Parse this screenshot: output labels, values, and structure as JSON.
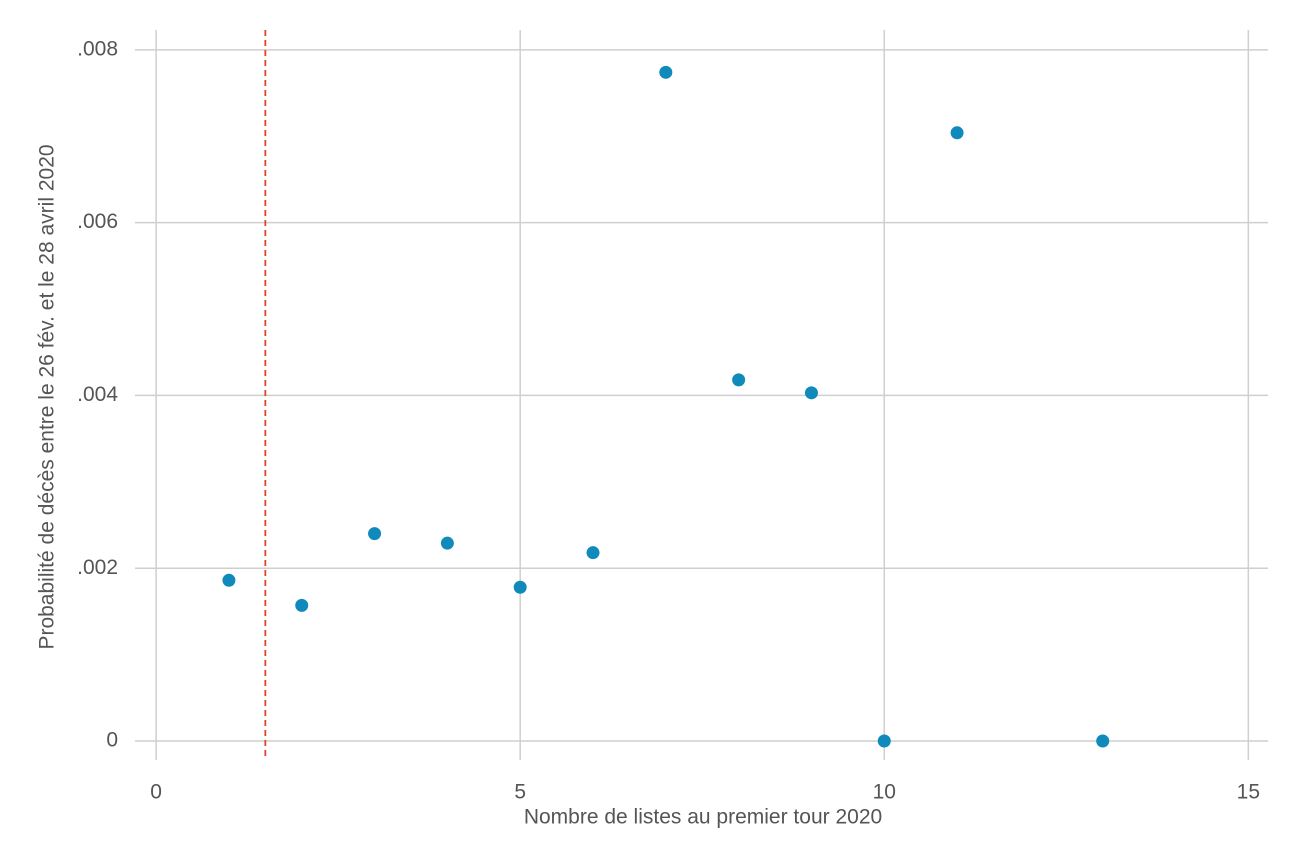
{
  "chart_data": {
    "type": "scatter",
    "x_label": "Nombre de listes au premier tour 2020",
    "y_label": "Probabilité de décès entre le 26 fév. et le 28 avril 2020",
    "series": [
      {
        "color": "#0f8abb",
        "x": [
          1,
          2,
          3,
          4,
          5,
          6,
          7,
          8,
          9,
          10,
          11,
          13
        ],
        "values": [
          0.00186,
          0.00157,
          0.0024,
          0.00229,
          0.00178,
          0.00218,
          0.00774,
          0.00418,
          0.00403,
          0,
          0.00704,
          0
        ]
      }
    ],
    "xlim": [
      -0.29,
      15.27
    ],
    "ylim": [
      -0.00022,
      0.00823
    ],
    "xticks": [
      0,
      5,
      10,
      15
    ],
    "yticks": [
      0,
      {
        "value": 0.002,
        "label": ".002"
      },
      {
        "value": 0.004,
        "label": ".004"
      },
      {
        "value": 0.006,
        "label": ".006"
      },
      {
        "value": 0.008,
        "label": ".008"
      }
    ],
    "grid": true,
    "vline": {
      "x": 1.5,
      "color": "#e0432a"
    }
  }
}
